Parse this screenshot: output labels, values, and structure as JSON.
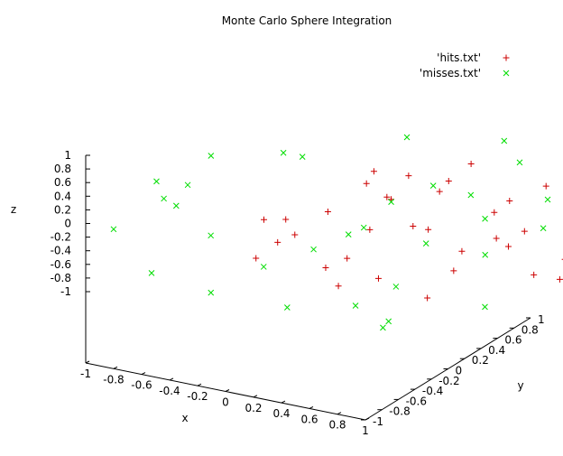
{
  "chart_data": {
    "type": "scatter3d",
    "title": "Monte Carlo Sphere Integration",
    "xlabel": "x",
    "ylabel": "y",
    "zlabel": "z",
    "xlim": [
      -1,
      1
    ],
    "ylim": [
      -1,
      1
    ],
    "zlim": [
      -1,
      1
    ],
    "x_ticks": [
      "-1",
      "-0.8",
      "-0.6",
      "-0.4",
      "-0.2",
      "0",
      "0.2",
      "0.4",
      "0.6",
      "0.8",
      "1"
    ],
    "y_ticks": [
      "-1",
      "-0.8",
      "-0.6",
      "-0.4",
      "-0.2",
      "0",
      "0.2",
      "0.4",
      "0.6",
      "0.8",
      "1"
    ],
    "z_ticks": [
      "-1",
      "-0.8",
      "-0.6",
      "-0.4",
      "-0.2",
      "0",
      "0.2",
      "0.4",
      "0.6",
      "0.8",
      "1"
    ],
    "legend_position": "top-right",
    "grid": false,
    "series": [
      {
        "name": "'hits.txt'",
        "marker": "+",
        "color": "#cc0000",
        "points": [
          [
            0.12,
            -0.35,
            0.64
          ],
          [
            -0.41,
            0.22,
            0.31
          ],
          [
            0.55,
            0.18,
            -0.27
          ],
          [
            -0.08,
            0.67,
            0.12
          ],
          [
            0.33,
            -0.52,
            -0.41
          ],
          [
            -0.62,
            -0.15,
            0.05
          ],
          [
            0.21,
            0.44,
            0.58
          ],
          [
            -0.27,
            -0.38,
            -0.55
          ],
          [
            0.68,
            -0.21,
            0.22
          ],
          [
            -0.15,
            0.12,
            -0.71
          ],
          [
            0.05,
            -0.72,
            0.18
          ],
          [
            -0.48,
            0.51,
            -0.12
          ],
          [
            0.41,
            0.62,
            -0.08
          ],
          [
            -0.71,
            0.08,
            0.35
          ],
          [
            0.18,
            -0.11,
            0.82
          ],
          [
            -0.33,
            -0.62,
            0.21
          ],
          [
            0.59,
            0.35,
            0.41
          ],
          [
            -0.22,
            0.41,
            -0.48
          ],
          [
            0.02,
            0.05,
            -0.33
          ],
          [
            -0.55,
            -0.42,
            -0.28
          ],
          [
            0.45,
            -0.44,
            0.38
          ],
          [
            -0.12,
            -0.18,
            0.45
          ],
          [
            0.28,
            0.21,
            -0.62
          ],
          [
            -0.38,
            0.68,
            0.25
          ],
          [
            0.72,
            0.05,
            -0.45
          ],
          [
            -0.65,
            0.32,
            -0.38
          ],
          [
            0.08,
            0.52,
            -0.22
          ],
          [
            -0.02,
            -0.48,
            -0.68
          ],
          [
            0.36,
            -0.68,
            -0.05
          ],
          [
            -0.45,
            -0.05,
            0.68
          ],
          [
            0.15,
            0.78,
            0.32
          ],
          [
            -0.81,
            -0.22,
            -0.12
          ],
          [
            0.52,
            -0.05,
            0.65
          ],
          [
            -0.18,
            -0.75,
            -0.25
          ],
          [
            0.25,
            -0.25,
            -0.82
          ],
          [
            -0.52,
            0.15,
            0.52
          ],
          [
            0.62,
            0.48,
            0.12
          ],
          [
            -0.28,
            0.28,
            0.75
          ],
          [
            0.42,
            0.08,
            0.12
          ],
          [
            -0.05,
            -0.32,
            0.08
          ]
        ]
      },
      {
        "name": "'misses.txt'",
        "marker": "x",
        "color": "#00dd00",
        "points": [
          [
            0.92,
            0.65,
            0.35
          ],
          [
            -0.88,
            0.72,
            -0.45
          ],
          [
            0.75,
            -0.85,
            0.62
          ],
          [
            -0.95,
            -0.68,
            0.28
          ],
          [
            0.85,
            0.82,
            -0.72
          ],
          [
            -0.72,
            -0.88,
            -0.65
          ],
          [
            0.98,
            -0.45,
            -0.58
          ],
          [
            -0.62,
            0.95,
            0.72
          ],
          [
            0.45,
            0.92,
            0.85
          ],
          [
            -0.85,
            0.35,
            0.88
          ],
          [
            0.68,
            -0.72,
            -0.92
          ],
          [
            -0.92,
            -0.25,
            -0.85
          ],
          [
            0.95,
            0.12,
            0.78
          ],
          [
            -0.35,
            -0.95,
            0.82
          ],
          [
            0.82,
            0.95,
            0.15
          ],
          [
            -0.98,
            0.55,
            0.05
          ],
          [
            0.55,
            -0.95,
            0.25
          ],
          [
            -0.78,
            -0.82,
            0.65
          ],
          [
            0.88,
            0.45,
            -0.35
          ],
          [
            -0.45,
            0.88,
            -0.78
          ],
          [
            0.72,
            -0.35,
            0.92
          ],
          [
            -0.68,
            0.75,
            0.45
          ],
          [
            0.35,
            0.72,
            -0.95
          ],
          [
            -0.95,
            0.15,
            -0.52
          ],
          [
            0.98,
            -0.85,
            -0.15
          ],
          [
            -0.55,
            -0.72,
            -0.92
          ],
          [
            0.65,
            0.58,
            0.92
          ],
          [
            -0.88,
            -0.95,
            -0.05
          ],
          [
            0.25,
            -0.88,
            -0.75
          ],
          [
            -0.75,
            0.92,
            -0.18
          ],
          [
            0.92,
            -0.15,
            0.45
          ],
          [
            -0.82,
            -0.55,
            0.92
          ],
          [
            0.78,
            0.88,
            0.55
          ],
          [
            -0.95,
            0.85,
            0.62
          ],
          [
            0.58,
            -0.62,
            0.85
          ],
          [
            -0.62,
            -0.35,
            0.98
          ],
          [
            0.95,
            0.72,
            -0.55
          ],
          [
            -0.72,
            0.62,
            -0.88
          ],
          [
            0.85,
            -0.95,
            -0.45
          ],
          [
            -0.48,
            -0.92,
            0.45
          ],
          [
            0.45,
            -0.55,
            -0.98
          ],
          [
            -0.98,
            -0.45,
            -0.35
          ],
          [
            0.75,
            0.25,
            -0.88
          ],
          [
            -0.35,
            0.95,
            0.45
          ],
          [
            0.92,
            0.35,
            0.68
          ],
          [
            -0.85,
            -0.12,
            0.75
          ],
          [
            0.62,
            0.95,
            -0.35
          ],
          [
            -0.92,
            0.48,
            -0.75
          ]
        ]
      }
    ]
  }
}
